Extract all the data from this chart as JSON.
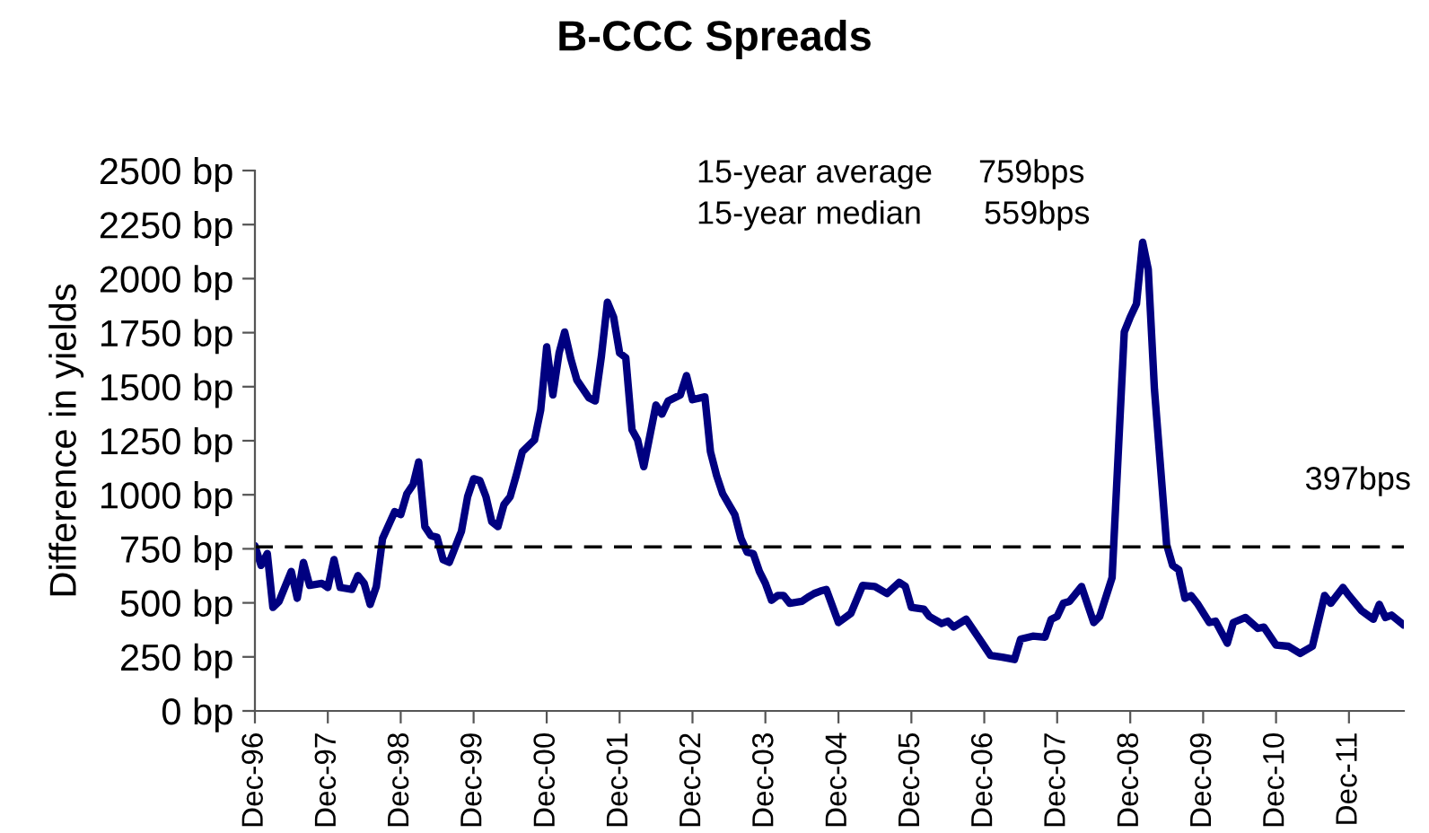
{
  "chart_data": {
    "type": "line",
    "title": "B-CCC Spreads",
    "ylabel": "Difference in yields",
    "annotations": [
      "15-year average",
      "759bps",
      "15-year median",
      "559bps",
      "397bps"
    ],
    "x": [
      "1996-12",
      "1997-01",
      "1997-02",
      "1997-03",
      "1997-04",
      "1997-06",
      "1997-07",
      "1997-08",
      "1997-09",
      "1997-11",
      "1997-12",
      "1998-01",
      "1998-02",
      "1998-04",
      "1998-05",
      "1998-06",
      "1998-07",
      "1998-08",
      "1998-09",
      "1998-11",
      "1998-12",
      "1999-01",
      "1999-02",
      "1999-03",
      "1999-04",
      "1999-05",
      "1999-06",
      "1999-07",
      "1999-08",
      "1999-10",
      "1999-11",
      "1999-12",
      "2000-01",
      "2000-02",
      "2000-03",
      "2000-04",
      "2000-05",
      "2000-06",
      "2000-07",
      "2000-08",
      "2000-10",
      "2000-11",
      "2000-12",
      "2001-01",
      "2001-02",
      "2001-03",
      "2001-04",
      "2001-05",
      "2001-07",
      "2001-08",
      "2001-09",
      "2001-10",
      "2001-11",
      "2001-12",
      "2002-01",
      "2002-02",
      "2002-03",
      "2002-04",
      "2002-06",
      "2002-07",
      "2002-08",
      "2002-10",
      "2002-11",
      "2002-12",
      "2003-02",
      "2003-03",
      "2003-04",
      "2003-05",
      "2003-07",
      "2003-08",
      "2003-09",
      "2003-10",
      "2003-11",
      "2003-12",
      "2004-01",
      "2004-02",
      "2004-03",
      "2004-04",
      "2004-06",
      "2004-07",
      "2004-08",
      "2004-09",
      "2004-10",
      "2004-12",
      "2005-02",
      "2005-04",
      "2005-06",
      "2005-08",
      "2005-10",
      "2005-11",
      "2005-12",
      "2006-02",
      "2006-03",
      "2006-05",
      "2006-06",
      "2006-07",
      "2006-09",
      "2006-11",
      "2007-01",
      "2007-03",
      "2007-05",
      "2007-06",
      "2007-08",
      "2007-10",
      "2007-11",
      "2007-12",
      "2008-01",
      "2008-02",
      "2008-04",
      "2008-06",
      "2008-07",
      "2008-09",
      "2008-11",
      "2008-12",
      "2009-01",
      "2009-02",
      "2009-03",
      "2009-04",
      "2009-06",
      "2009-07",
      "2009-08",
      "2009-09",
      "2009-10",
      "2009-11",
      "2010-01",
      "2010-02",
      "2010-04",
      "2010-05",
      "2010-07",
      "2010-09",
      "2010-10",
      "2010-12",
      "2011-02",
      "2011-04",
      "2011-06",
      "2011-08",
      "2011-09",
      "2011-11",
      "2011-12",
      "2012-02",
      "2012-04",
      "2012-05",
      "2012-06",
      "2012-07",
      "2012-09"
    ],
    "series": [
      {
        "color": "#000080",
        "values": [
          764,
          673,
          728,
          479,
          507,
          645,
          521,
          687,
          581,
          590,
          571,
          700,
          571,
          562,
          626,
          590,
          493,
          576,
          797,
          922,
          908,
          1005,
          1047,
          1152,
          853,
          811,
          803,
          700,
          687,
          831,
          991,
          1074,
          1066,
          991,
          875,
          853,
          955,
          991,
          1088,
          1199,
          1254,
          1393,
          1684,
          1462,
          1656,
          1753,
          1628,
          1531,
          1448,
          1434,
          1642,
          1891,
          1822,
          1656,
          1634,
          1301,
          1254,
          1130,
          1415,
          1373,
          1434,
          1462,
          1551,
          1440,
          1453,
          1199,
          1088,
          1005,
          908,
          797,
          734,
          728,
          645,
          590,
          512,
          534,
          534,
          498,
          507,
          526,
          543,
          554,
          562,
          409,
          451,
          581,
          576,
          543,
          595,
          576,
          479,
          471,
          437,
          404,
          415,
          388,
          424,
          341,
          257,
          249,
          238,
          332,
          346,
          341,
          424,
          437,
          498,
          507,
          576,
          409,
          437,
          617,
          1753,
          1822,
          1883,
          2168,
          2043,
          1489,
          770,
          673,
          653,
          521,
          534,
          498,
          409,
          415,
          313,
          409,
          432,
          382,
          388,
          305,
          299,
          266,
          299,
          534,
          498,
          571,
          534,
          465,
          424,
          493,
          432,
          443,
          397
        ]
      }
    ],
    "xlim": [
      "1996-12",
      "2012-09"
    ],
    "xticks": [
      {
        "value": "1996-12",
        "label": "Dec-96"
      },
      {
        "value": "1997-12",
        "label": "Dec-97"
      },
      {
        "value": "1998-12",
        "label": "Dec-98"
      },
      {
        "value": "1999-12",
        "label": "Dec-99"
      },
      {
        "value": "2000-12",
        "label": "Dec-00"
      },
      {
        "value": "2001-12",
        "label": "Dec-01"
      },
      {
        "value": "2002-12",
        "label": "Dec-02"
      },
      {
        "value": "2003-12",
        "label": "Dec-03"
      },
      {
        "value": "2004-12",
        "label": "Dec-04"
      },
      {
        "value": "2005-12",
        "label": "Dec-05"
      },
      {
        "value": "2006-12",
        "label": "Dec-06"
      },
      {
        "value": "2007-12",
        "label": "Dec-07"
      },
      {
        "value": "2008-12",
        "label": "Dec-08"
      },
      {
        "value": "2009-12",
        "label": "Dec-09"
      },
      {
        "value": "2010-12",
        "label": "Dec-10"
      },
      {
        "value": "2011-12",
        "label": "Dec-11"
      }
    ],
    "ylim": [
      0,
      2500
    ],
    "yticks": [
      {
        "value": 0,
        "label": "0 bp"
      },
      {
        "value": 250,
        "label": "250 bp"
      },
      {
        "value": 500,
        "label": "500 bp"
      },
      {
        "value": 750,
        "label": "750 bp"
      },
      {
        "value": 1000,
        "label": "1000 bp"
      },
      {
        "value": 1250,
        "label": "1250 bp"
      },
      {
        "value": 1500,
        "label": "1500 bp"
      },
      {
        "value": 1750,
        "label": "1750 bp"
      },
      {
        "value": 2000,
        "label": "2000 bp"
      },
      {
        "value": 2250,
        "label": "2250 bp"
      },
      {
        "value": 2500,
        "label": "2500 bp"
      }
    ],
    "ref_lines": [
      {
        "axis": "y",
        "value": 759,
        "color": "#000000",
        "line_style": "dashed"
      }
    ],
    "grid": false,
    "marker": "none",
    "line_style": "solid"
  }
}
